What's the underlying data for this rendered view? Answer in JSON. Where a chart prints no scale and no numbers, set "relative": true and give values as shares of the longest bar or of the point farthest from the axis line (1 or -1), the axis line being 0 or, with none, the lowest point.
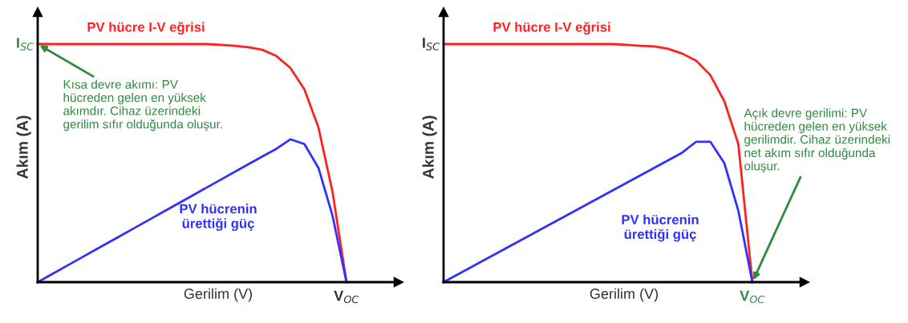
{
  "chart_data": [
    {
      "type": "line",
      "relative": true,
      "xlabel": "Gerilim (V)",
      "ylabel": "Akım (A)",
      "legend": false,
      "grid": false,
      "marker": "none",
      "line_style": "solid",
      "categories": [
        null,
        null,
        null,
        null,
        null,
        null,
        null,
        null,
        null,
        null,
        null,
        null,
        null,
        null,
        null,
        null,
        null,
        null,
        null,
        null,
        null,
        null,
        null
      ],
      "series": [
        {
          "name": "PV hücre I-V eğrisi",
          "color": "#ff2020",
          "values": [
            1,
            1,
            1,
            1,
            1,
            1,
            1,
            1,
            1,
            1,
            1,
            1,
            1,
            0.997,
            0.993,
            0.987,
            0.976,
            0.95,
            0.9,
            0.81,
            0.65,
            0.38,
            0
          ]
        },
        {
          "name": "PV hücrenin\nürettiği güç",
          "color": "#3030ff",
          "values": [
            0,
            0.033,
            0.066,
            0.099,
            0.132,
            0.165,
            0.198,
            0.231,
            0.264,
            0.297,
            0.33,
            0.363,
            0.396,
            0.429,
            0.462,
            0.495,
            0.528,
            0.56,
            0.6,
            0.58,
            0.48,
            0.28,
            0
          ]
        }
      ],
      "annotations": [
        "I$_{SC}$",
        "V$_{OC}$",
        "Kısa devre akımı: PV\nhücreden gelen en yüksek\nakımdır. Cihaz üzerindeki\ngerilim sıfır olduğunda oluşur."
      ]
    },
    {
      "type": "line",
      "relative": true,
      "xlabel": "Gerilim (V)",
      "ylabel": "Akım (A)",
      "legend": false,
      "grid": false,
      "marker": "none",
      "line_style": "solid",
      "categories": [
        null,
        null,
        null,
        null,
        null,
        null,
        null,
        null,
        null,
        null,
        null,
        null,
        null,
        null,
        null,
        null,
        null,
        null,
        null,
        null,
        null,
        null,
        null
      ],
      "series": [
        {
          "name": "PV hücre I-V eğrisi",
          "color": "#ff2020",
          "values": [
            1,
            1,
            1,
            1,
            1,
            1,
            1,
            1,
            1,
            1,
            1,
            1,
            1,
            0.997,
            0.993,
            0.99,
            0.98,
            0.96,
            0.93,
            0.87,
            0.76,
            0.58,
            0
          ]
        },
        {
          "name": "PV hücrenin\nürettiği güç",
          "color": "#3030ff",
          "values": [
            0,
            0.032,
            0.064,
            0.096,
            0.128,
            0.16,
            0.192,
            0.224,
            0.256,
            0.288,
            0.32,
            0.352,
            0.384,
            0.416,
            0.448,
            0.48,
            0.512,
            0.544,
            0.59,
            0.59,
            0.5,
            0.3,
            0
          ]
        }
      ],
      "annotations": [
        "I$_{SC}$",
        "V$_{OC}$",
        "Açık devre gerilimi: PV\nhücreden gelen en yüksek\ngerilimdir. Cihaz üzerindeki\nnet akım sıfır olduğunda\noluşur."
      ]
    }
  ]
}
